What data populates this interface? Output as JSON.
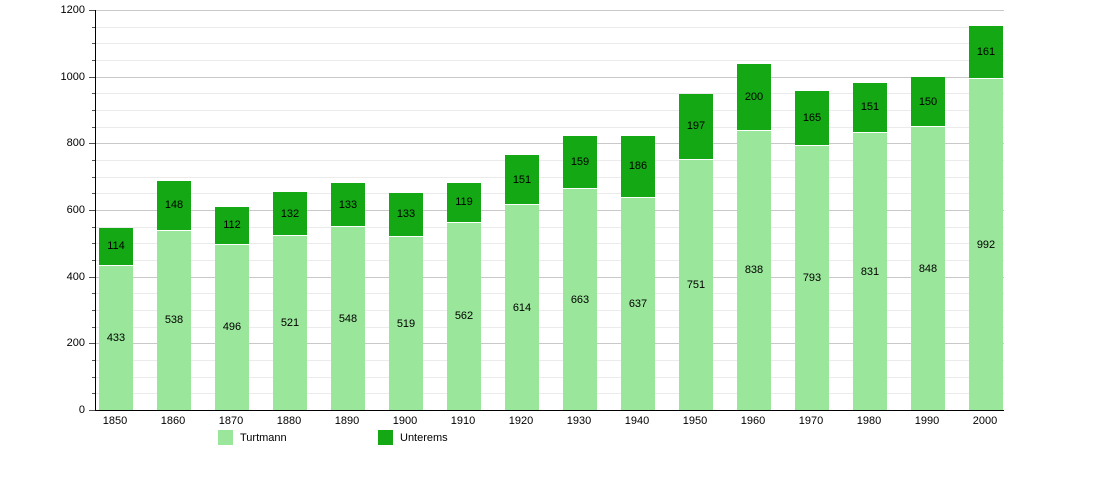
{
  "chart_data": {
    "type": "bar",
    "stacked": true,
    "title": "",
    "xlabel": "",
    "ylabel": "",
    "categories": [
      "1850",
      "1860",
      "1870",
      "1880",
      "1890",
      "1900",
      "1910",
      "1920",
      "1930",
      "1940",
      "1950",
      "1960",
      "1970",
      "1980",
      "1990",
      "2000"
    ],
    "series": [
      {
        "name": "Turtmann",
        "color": "#9ae69a",
        "values": [
          433,
          538,
          496,
          521,
          548,
          519,
          562,
          614,
          663,
          637,
          751,
          838,
          793,
          831,
          848,
          992
        ]
      },
      {
        "name": "Unterems",
        "color": "#14a814",
        "values": [
          114,
          148,
          112,
          132,
          133,
          133,
          119,
          151,
          159,
          186,
          197,
          200,
          165,
          151,
          150,
          161
        ]
      }
    ],
    "ylim": [
      0,
      1200
    ],
    "ytick_step": 200,
    "minor_grid_step": 50,
    "grid": "on",
    "legend_position": "bottom"
  },
  "legend": {
    "items": [
      {
        "label": "Turtmann",
        "color": "#9ae69a"
      },
      {
        "label": "Unterems",
        "color": "#14a814"
      }
    ]
  }
}
